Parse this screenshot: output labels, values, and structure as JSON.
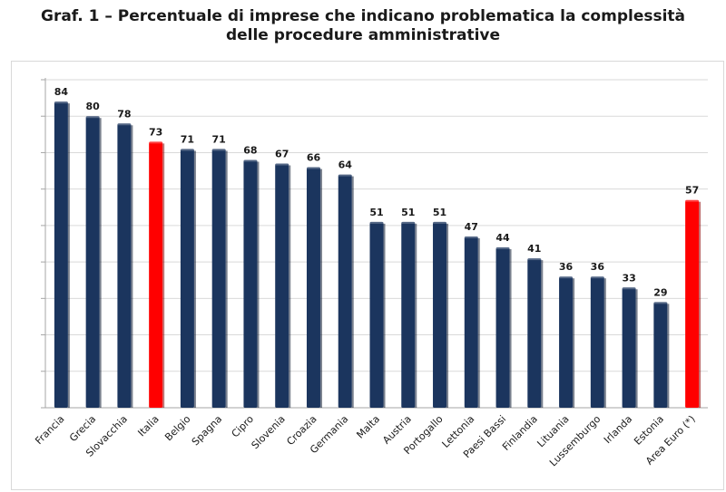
{
  "title_line1": "Graf. 1 – Percentuale di imprese che indicano problematica la complessità",
  "title_line2": "delle procedure amministrative",
  "chart_data": {
    "type": "bar",
    "categories": [
      "Francia",
      "Grecia",
      "Slovacchia",
      "Italia",
      "Belgio",
      "Spagna",
      "Cipro",
      "Slovenia",
      "Croazia",
      "Germania",
      "Malta",
      "Austria",
      "Portogallo",
      "Lettonia",
      "Paesi Bassi",
      "Finlandia",
      "Lituania",
      "Lussemburgo",
      "Irlanda",
      "Estonia",
      "Area Euro (*)"
    ],
    "values": [
      84,
      80,
      78,
      73,
      71,
      71,
      68,
      67,
      66,
      64,
      51,
      51,
      51,
      47,
      44,
      41,
      36,
      36,
      33,
      29,
      57
    ],
    "highlight": [
      "Italia",
      "Area Euro (*)"
    ],
    "colors": {
      "default": "#1b355e",
      "highlight": "#ff0000",
      "grid": "#d9d9d9"
    },
    "ylim": [
      0,
      90
    ],
    "grid": true,
    "legend": "none",
    "data_labels": true
  }
}
